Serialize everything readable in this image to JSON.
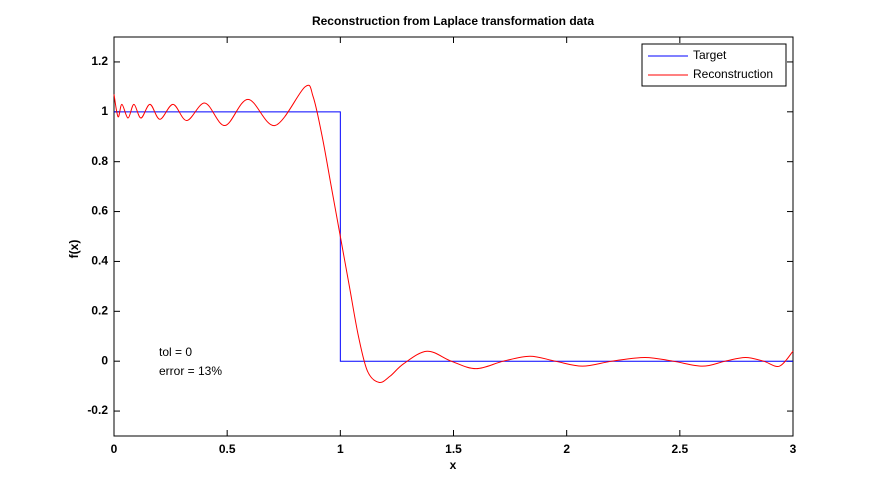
{
  "chart_data": {
    "type": "line",
    "title": "Reconstruction from Laplace transformation data",
    "xlabel": "x",
    "ylabel": "f(x)",
    "xlim": [
      0,
      3
    ],
    "ylim": [
      -0.3,
      1.3
    ],
    "xticks": [
      0,
      0.5,
      1,
      1.5,
      2,
      2.5,
      3
    ],
    "yticks": [
      -0.2,
      0,
      0.2,
      0.4,
      0.6,
      0.8,
      1,
      1.2
    ],
    "legend": "northeast",
    "annotations": [
      "tol = 0",
      "error = 13%"
    ],
    "series": [
      {
        "name": "Target",
        "color": "#0000ff",
        "x": [
          0,
          1,
          1,
          3
        ],
        "values": [
          1,
          1,
          0,
          0
        ]
      },
      {
        "name": "Reconstruction",
        "color": "#ff0000",
        "x": [
          0,
          0.018,
          0.035,
          0.062,
          0.088,
          0.119,
          0.159,
          0.203,
          0.261,
          0.322,
          0.402,
          0.49,
          0.592,
          0.711,
          0.844,
          0.88,
          0.92,
          0.96,
          1.0,
          1.04,
          1.08,
          1.12,
          1.171,
          1.22,
          1.28,
          1.383,
          1.49,
          1.6,
          1.72,
          1.838,
          1.95,
          2.07,
          2.2,
          2.346,
          2.47,
          2.6,
          2.7,
          2.79,
          2.87,
          2.94,
          3.0
        ],
        "values": [
          1.07,
          0.98,
          1.03,
          0.975,
          1.03,
          0.975,
          1.03,
          0.97,
          1.03,
          0.965,
          1.035,
          0.945,
          1.05,
          0.945,
          1.1,
          1.06,
          0.9,
          0.7,
          0.5,
          0.3,
          0.1,
          -0.04,
          -0.085,
          -0.06,
          -0.01,
          0.04,
          0.0,
          -0.03,
          0.0,
          0.02,
          0.0,
          -0.02,
          0.0,
          0.015,
          0.0,
          -0.02,
          0.0,
          0.015,
          0.0,
          -0.02,
          0.04
        ]
      }
    ]
  }
}
